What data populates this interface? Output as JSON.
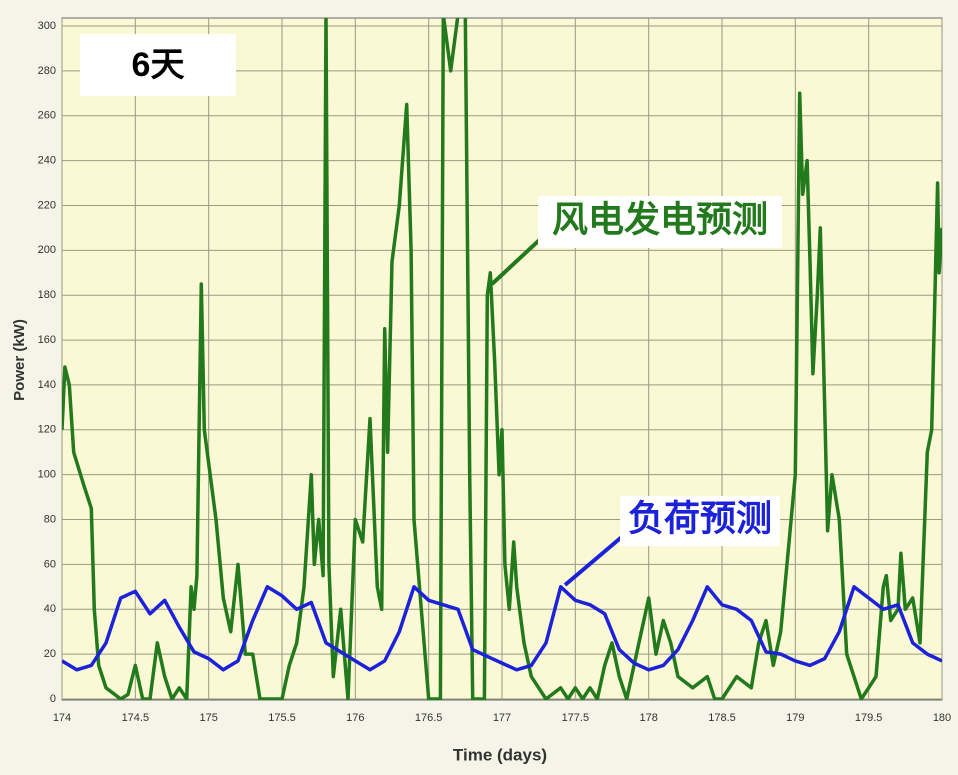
{
  "chart_data": {
    "type": "line",
    "xlabel": "Time (days)",
    "ylabel": "Power (kW)",
    "xlim": [
      174,
      180
    ],
    "ylim": [
      0,
      300
    ],
    "xticks": [
      174,
      174.5,
      175,
      175.5,
      176,
      176.5,
      177,
      177.5,
      178,
      178.5,
      179,
      179.5,
      180
    ],
    "yticks": [
      0,
      20,
      40,
      60,
      80,
      100,
      120,
      140,
      160,
      180,
      200,
      220,
      240,
      260,
      280,
      300
    ],
    "grid": true,
    "annotations": [
      {
        "text": "6天"
      },
      {
        "text": "风电发电预测"
      },
      {
        "text": "负荷预测"
      }
    ],
    "series": [
      {
        "name": "风电发电预测",
        "color": "#237a1c",
        "x": [
          174.0,
          174.02,
          174.05,
          174.08,
          174.15,
          174.2,
          174.22,
          174.25,
          174.3,
          174.4,
          174.45,
          174.5,
          174.55,
          174.6,
          174.65,
          174.7,
          174.75,
          174.8,
          174.85,
          174.88,
          174.9,
          174.92,
          174.95,
          174.97,
          175.0,
          175.05,
          175.1,
          175.15,
          175.2,
          175.25,
          175.3,
          175.35,
          175.5,
          175.55,
          175.6,
          175.65,
          175.7,
          175.72,
          175.75,
          175.78,
          175.8,
          175.82,
          175.85,
          175.9,
          175.95,
          176.0,
          176.05,
          176.1,
          176.15,
          176.18,
          176.2,
          176.22,
          176.25,
          176.3,
          176.35,
          176.38,
          176.4,
          176.45,
          176.5,
          176.58,
          176.6,
          176.65,
          176.7,
          176.75,
          176.78,
          176.8,
          176.88,
          176.9,
          176.92,
          176.95,
          176.98,
          177.0,
          177.02,
          177.05,
          177.08,
          177.1,
          177.15,
          177.2,
          177.3,
          177.4,
          177.45,
          177.5,
          177.55,
          177.6,
          177.65,
          177.7,
          177.75,
          177.8,
          177.85,
          178.0,
          178.05,
          178.1,
          178.15,
          178.2,
          178.3,
          178.4,
          178.45,
          178.5,
          178.6,
          178.7,
          178.75,
          178.8,
          178.85,
          178.9,
          179.0,
          179.03,
          179.05,
          179.08,
          179.1,
          179.12,
          179.15,
          179.17,
          179.2,
          179.22,
          179.25,
          179.3,
          179.35,
          179.4,
          179.45,
          179.5,
          179.55,
          179.6,
          179.62,
          179.65,
          179.7,
          179.72,
          179.75,
          179.8,
          179.85,
          179.9,
          179.93,
          179.97,
          179.98,
          180.0
        ],
        "values": [
          120,
          148,
          140,
          110,
          95,
          85,
          40,
          15,
          5,
          0,
          2,
          15,
          0,
          0,
          25,
          10,
          0,
          5,
          0,
          50,
          40,
          55,
          185,
          120,
          105,
          80,
          45,
          30,
          60,
          20,
          20,
          0,
          0,
          15,
          25,
          50,
          100,
          60,
          80,
          55,
          305,
          60,
          10,
          40,
          0,
          80,
          70,
          125,
          50,
          40,
          165,
          110,
          195,
          220,
          265,
          200,
          80,
          40,
          0,
          0,
          305,
          280,
          305,
          305,
          100,
          0,
          0,
          180,
          190,
          150,
          100,
          120,
          60,
          40,
          70,
          50,
          25,
          10,
          0,
          5,
          0,
          5,
          0,
          5,
          0,
          15,
          25,
          10,
          0,
          45,
          20,
          35,
          25,
          10,
          5,
          10,
          0,
          0,
          10,
          5,
          25,
          35,
          15,
          30,
          100,
          270,
          225,
          240,
          195,
          145,
          180,
          210,
          130,
          75,
          100,
          80,
          20,
          10,
          0,
          5,
          10,
          50,
          55,
          35,
          40,
          65,
          40,
          45,
          25,
          110,
          120,
          230,
          190,
          210
        ]
      },
      {
        "name": "负荷预测",
        "color": "#1c22d8",
        "x": [
          174.0,
          174.1,
          174.2,
          174.3,
          174.4,
          174.5,
          174.6,
          174.7,
          174.8,
          174.9,
          175.0,
          175.1,
          175.2,
          175.3,
          175.4,
          175.5,
          175.6,
          175.7,
          175.8,
          175.9,
          176.0,
          176.1,
          176.2,
          176.3,
          176.4,
          176.5,
          176.6,
          176.7,
          176.8,
          176.9,
          177.0,
          177.1,
          177.2,
          177.3,
          177.4,
          177.5,
          177.6,
          177.7,
          177.8,
          177.9,
          178.0,
          178.1,
          178.2,
          178.3,
          178.4,
          178.5,
          178.6,
          178.7,
          178.8,
          178.9,
          179.0,
          179.1,
          179.2,
          179.3,
          179.4,
          179.5,
          179.6,
          179.7,
          179.8,
          179.9,
          180.0
        ],
        "values": [
          17,
          13,
          15,
          25,
          45,
          48,
          38,
          44,
          32,
          21,
          18,
          13,
          17,
          35,
          50,
          46,
          40,
          43,
          25,
          21,
          17,
          13,
          17,
          30,
          50,
          44,
          42,
          40,
          22,
          19,
          16,
          13,
          15,
          25,
          50,
          44,
          42,
          38,
          22,
          16,
          13,
          15,
          22,
          35,
          50,
          42,
          40,
          35,
          21,
          20,
          17,
          15,
          18,
          30,
          50,
          45,
          40,
          42,
          25,
          20,
          17
        ]
      }
    ]
  }
}
